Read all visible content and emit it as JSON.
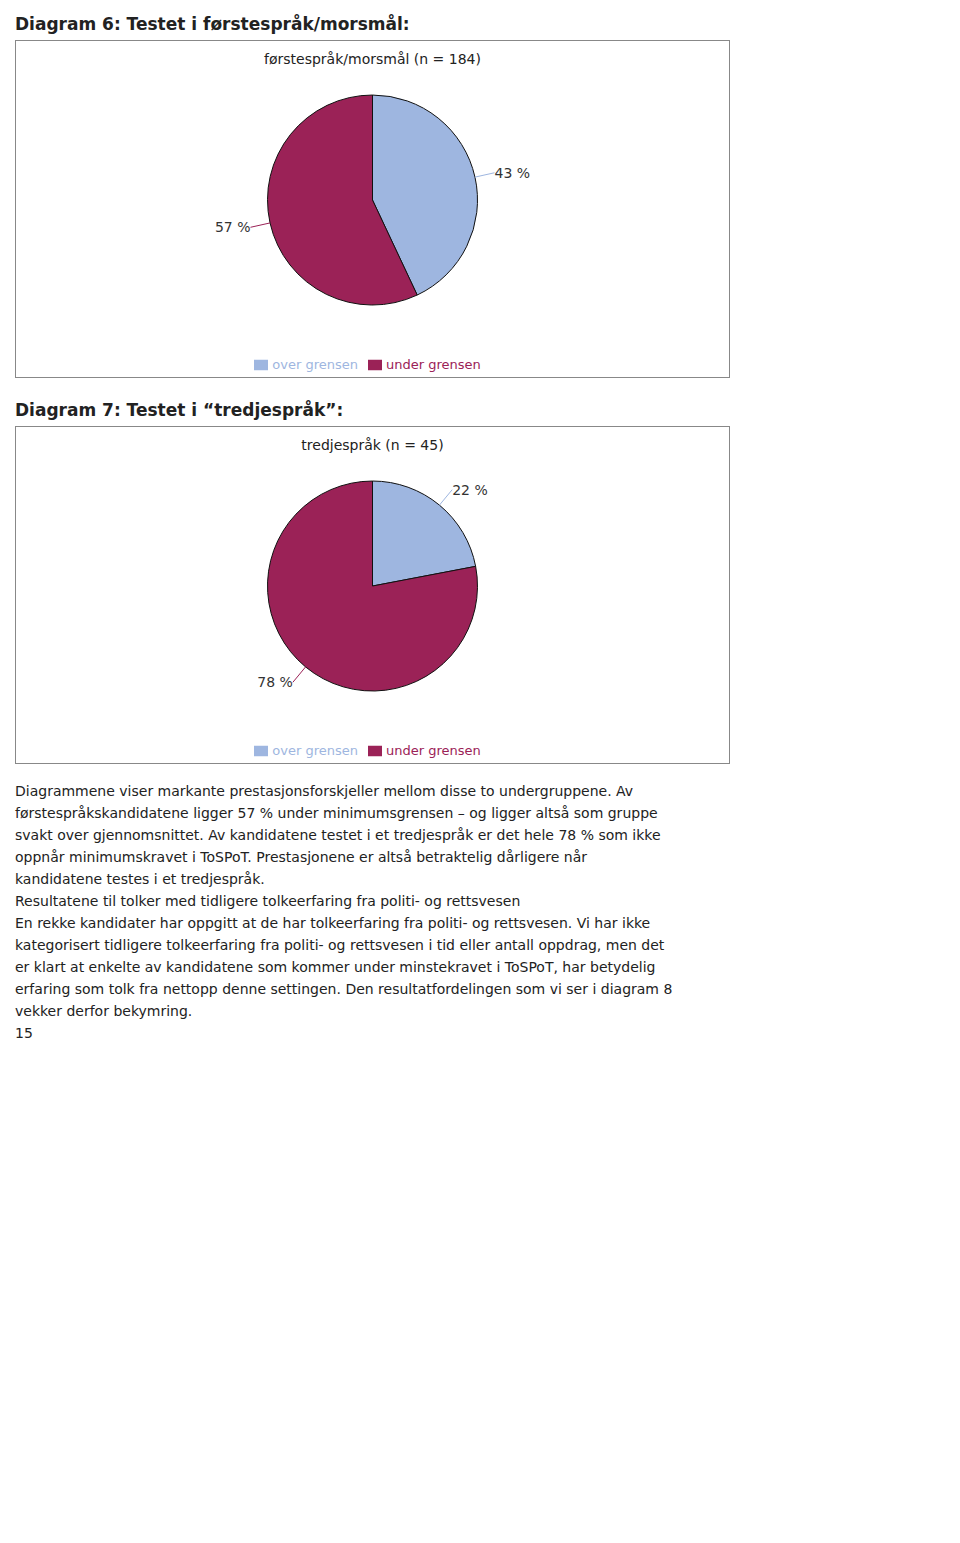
{
  "chart_data": [
    {
      "type": "pie",
      "title": "Diagram 6: Testet i førstespråk/morsmål:",
      "subtitle": "førstespråk/morsmål (n = 184)",
      "categories": [
        "over grensen",
        "under grensen"
      ],
      "values": [
        43,
        57
      ],
      "value_labels": [
        "43 %",
        "57 %"
      ],
      "colors": [
        "#9eb6e0",
        "#9b2257"
      ],
      "data_labels": true,
      "legend": "bottom"
    },
    {
      "type": "pie",
      "title": "Diagram 7: Testet i “tredjespråk”:",
      "subtitle": "tredjespråk (n = 45)",
      "categories": [
        "over grensen",
        "under grensen"
      ],
      "values": [
        22,
        78
      ],
      "value_labels": [
        "22 %",
        "78 %"
      ],
      "colors": [
        "#9eb6e0",
        "#9b2257"
      ],
      "data_labels": true,
      "legend": "bottom",
      "annotations": [
        "Diagrammene viser markante prestasjonsforskjeller mellom disse to undergruppene. Av",
        "førstespråkskandidatene ligger 57 % under minimumsgrensen – og ligger altså som gruppe",
        "svakt over gjennomsnittet. Av kandidatene testet i et tredjespråk er det hele 78 % som ikke",
        "oppnår minimumskravet i ToSPoT. Prestasjonene er altså betraktelig dårligere når",
        "kandidatene testes i et tredjespråk.",
        "Resultatene til tolker med tidligere tolkeerfaring fra politi- og rettsvesen",
        "En rekke kandidater har oppgitt at de har tolkeerfaring fra politi- og rettsvesen. Vi har ikke",
        "kategorisert tidligere tolkeerfaring fra politi- og rettsvesen i tid eller antall oppdrag, men det",
        "er klart at enkelte av kandidatene som kommer under minstekravet i ToSPoT, har betydelig",
        "erfaring som tolk fra nettopp denne settingen. Den resultatfordelingen som vi ser i diagram 8",
        "vekker derfor bekymring.",
        "15"
      ]
    }
  ]
}
